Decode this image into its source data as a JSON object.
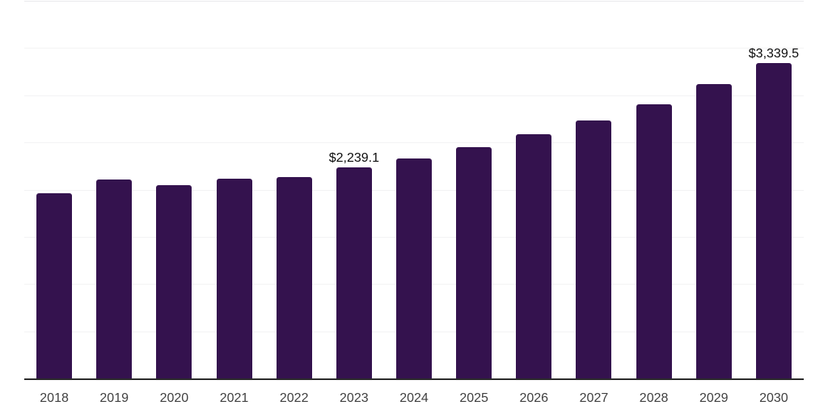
{
  "chart_data": {
    "type": "bar",
    "title": "",
    "xlabel": "",
    "ylabel": "",
    "categories": [
      "2018",
      "2019",
      "2020",
      "2021",
      "2022",
      "2023",
      "2024",
      "2025",
      "2026",
      "2027",
      "2028",
      "2029",
      "2030"
    ],
    "values": [
      1965,
      2110,
      2045,
      2115,
      2135,
      2239.1,
      2330,
      2450,
      2585,
      2730,
      2905,
      3115,
      3339.5
    ],
    "value_labels": [
      "",
      "",
      "",
      "",
      "",
      "$2,239.1",
      "",
      "",
      "",
      "",
      "",
      "",
      "$3,339.5"
    ],
    "ylim": [
      0,
      4000
    ],
    "grid_step": 500,
    "grid": true,
    "y_axis_labels_visible": false,
    "legend": "none",
    "colors": {
      "bar": "#34124e",
      "axis": "#2b2b2b",
      "gridline": "#f3f3f4",
      "top_gridline": "#e9e9ec",
      "tick_label": "#404040",
      "value_label": "#0d0d0d",
      "background": "#ffffff"
    }
  }
}
